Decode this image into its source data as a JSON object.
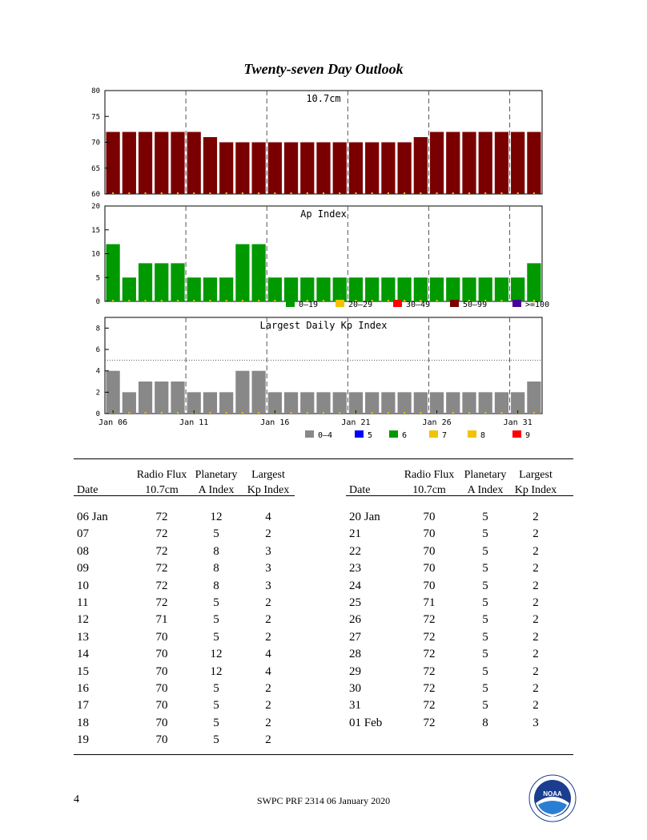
{
  "page_title": "Twenty-seven Day Outlook",
  "chart_data": [
    {
      "type": "bar",
      "title": "10.7cm",
      "x": [
        "Jan 06",
        "07",
        "08",
        "09",
        "10",
        "11",
        "12",
        "13",
        "14",
        "15",
        "16",
        "17",
        "18",
        "19",
        "20",
        "21",
        "22",
        "23",
        "24",
        "25",
        "26",
        "27",
        "28",
        "29",
        "30",
        "31",
        "01 Feb"
      ],
      "values": [
        72,
        72,
        72,
        72,
        72,
        72,
        71,
        70,
        70,
        70,
        70,
        70,
        70,
        70,
        70,
        70,
        70,
        70,
        70,
        71,
        72,
        72,
        72,
        72,
        72,
        72,
        72
      ],
      "ylim": [
        60,
        80
      ],
      "yticks": [
        "60",
        "65",
        "70",
        "75",
        "80"
      ],
      "bar_color": "#7a0000"
    },
    {
      "type": "bar",
      "title": "Ap Index",
      "x": [
        "Jan 06",
        "07",
        "08",
        "09",
        "10",
        "11",
        "12",
        "13",
        "14",
        "15",
        "16",
        "17",
        "18",
        "19",
        "20",
        "21",
        "22",
        "23",
        "24",
        "25",
        "26",
        "27",
        "28",
        "29",
        "30",
        "31",
        "01 Feb"
      ],
      "values": [
        12,
        5,
        8,
        8,
        8,
        5,
        5,
        5,
        12,
        12,
        5,
        5,
        5,
        5,
        5,
        5,
        5,
        5,
        5,
        5,
        5,
        5,
        5,
        5,
        5,
        5,
        8
      ],
      "ylim": [
        0,
        20
      ],
      "yticks": [
        "0",
        "5",
        "10",
        "15",
        "20"
      ],
      "bar_color": "#009900",
      "legend": [
        {
          "label": "0–19",
          "color": "#009900"
        },
        {
          "label": "20–29",
          "color": "#f2c300"
        },
        {
          "label": "30–49",
          "color": "#ff0000"
        },
        {
          "label": "50–99",
          "color": "#7a0000"
        },
        {
          "label": ">=100",
          "color": "#4b0099"
        }
      ]
    },
    {
      "type": "bar",
      "title": "Largest Daily Kp Index",
      "x": [
        "Jan 06",
        "07",
        "08",
        "09",
        "10",
        "11",
        "12",
        "13",
        "14",
        "15",
        "16",
        "17",
        "18",
        "19",
        "20",
        "21",
        "22",
        "23",
        "24",
        "25",
        "26",
        "27",
        "28",
        "29",
        "30",
        "31",
        "01 Feb"
      ],
      "values": [
        4,
        2,
        3,
        3,
        3,
        2,
        2,
        2,
        4,
        4,
        2,
        2,
        2,
        2,
        2,
        2,
        2,
        2,
        2,
        2,
        2,
        2,
        2,
        2,
        2,
        2,
        3
      ],
      "ylim": [
        0,
        9
      ],
      "yticks": [
        "0",
        "2",
        "4",
        "6",
        "8"
      ],
      "threshold": 5,
      "bar_color": "#888888",
      "xtick_labels": [
        "Jan 06",
        "Jan 11",
        "Jan 16",
        "Jan 21",
        "Jan 26",
        "Jan 31"
      ],
      "legend": [
        {
          "label": "0–4",
          "color": "#888888"
        },
        {
          "label": "5",
          "color": "#0000ff"
        },
        {
          "label": "6",
          "color": "#009900"
        },
        {
          "label": "7",
          "color": "#f2c300"
        },
        {
          "label": "8",
          "color": "#f2c300"
        },
        {
          "label": "9",
          "color": "#ff0000"
        }
      ]
    }
  ],
  "table": {
    "headers": {
      "date": "Date",
      "flux_top": "Radio Flux",
      "flux_bottom": "10.7cm",
      "ap_top": "Planetary",
      "ap_bottom": "A Index",
      "kp_top": "Largest",
      "kp_bottom": "Kp Index"
    },
    "left_rows": [
      [
        "06 Jan",
        "72",
        "12",
        "4"
      ],
      [
        "07",
        "72",
        "5",
        "2"
      ],
      [
        "08",
        "72",
        "8",
        "3"
      ],
      [
        "09",
        "72",
        "8",
        "3"
      ],
      [
        "10",
        "72",
        "8",
        "3"
      ],
      [
        "11",
        "72",
        "5",
        "2"
      ],
      [
        "12",
        "71",
        "5",
        "2"
      ],
      [
        "13",
        "70",
        "5",
        "2"
      ],
      [
        "14",
        "70",
        "12",
        "4"
      ],
      [
        "15",
        "70",
        "12",
        "4"
      ],
      [
        "16",
        "70",
        "5",
        "2"
      ],
      [
        "17",
        "70",
        "5",
        "2"
      ],
      [
        "18",
        "70",
        "5",
        "2"
      ],
      [
        "19",
        "70",
        "5",
        "2"
      ]
    ],
    "right_rows": [
      [
        "20 Jan",
        "70",
        "5",
        "2"
      ],
      [
        "21",
        "70",
        "5",
        "2"
      ],
      [
        "22",
        "70",
        "5",
        "2"
      ],
      [
        "23",
        "70",
        "5",
        "2"
      ],
      [
        "24",
        "70",
        "5",
        "2"
      ],
      [
        "25",
        "71",
        "5",
        "2"
      ],
      [
        "26",
        "72",
        "5",
        "2"
      ],
      [
        "27",
        "72",
        "5",
        "2"
      ],
      [
        "28",
        "72",
        "5",
        "2"
      ],
      [
        "29",
        "72",
        "5",
        "2"
      ],
      [
        "30",
        "72",
        "5",
        "2"
      ],
      [
        "31",
        "72",
        "5",
        "2"
      ],
      [
        "01 Feb",
        "72",
        "8",
        "3"
      ]
    ]
  },
  "footer": {
    "page_number": "4",
    "text": "SWPC PRF 2314 06 January 2020",
    "logo_text": "NOAA"
  },
  "colors": {
    "frame": "#000000",
    "dashed_guides": "#555555",
    "tick_marker": "#f2c300"
  }
}
